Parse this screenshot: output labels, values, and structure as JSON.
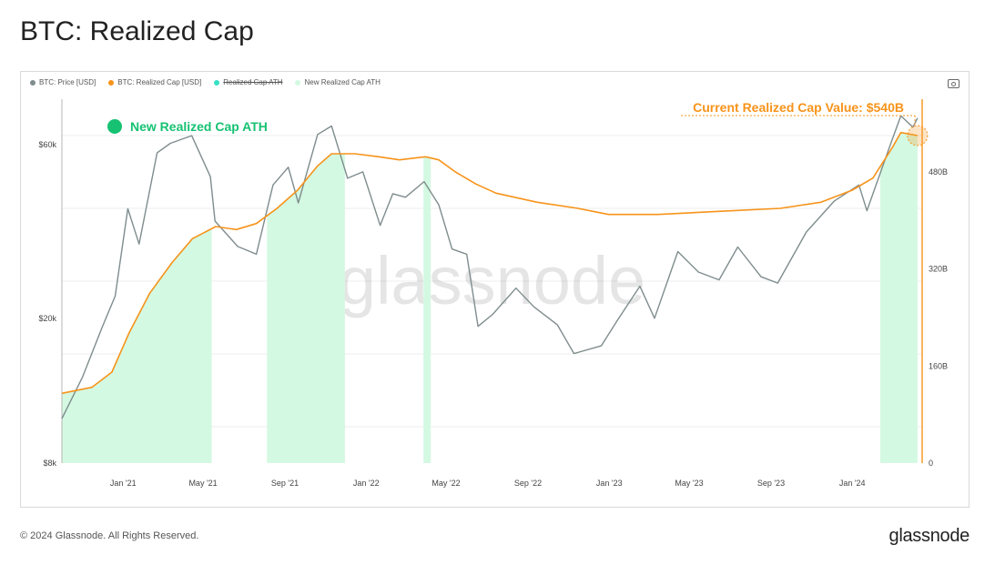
{
  "page": {
    "title": "BTC: Realized Cap",
    "copyright": "© 2024 Glassnode. All Rights Reserved.",
    "brand": "glassnode",
    "watermark": "glassnode"
  },
  "colors": {
    "price": "#7f8c8d",
    "realized_cap": "#f7931a",
    "ath_line": "#36e0c4",
    "ath_fill": "#d4f9e2",
    "ath_badge": "#16c172",
    "annotation": "#f7931a"
  },
  "chart_data": {
    "type": "line",
    "legend": [
      {
        "name": "BTC: Price [USD]",
        "color": "#7f8c8d",
        "struck": false
      },
      {
        "name": "BTC: Realized Cap [USD]",
        "color": "#f7931a",
        "struck": false
      },
      {
        "name": "Realized Cap ATH",
        "color": "#36e0c4",
        "struck": true
      },
      {
        "name": "New Realized Cap ATH",
        "color": "#d4f9e2",
        "struck": false
      }
    ],
    "x_ticks": [
      "Jan '21",
      "May '21",
      "Sep '21",
      "Jan '22",
      "May '22",
      "Sep '22",
      "Jan '23",
      "May '23",
      "Sep '23",
      "Jan '24"
    ],
    "x_range": [
      "2020-10-01",
      "2024-04-15"
    ],
    "y_left": {
      "scale": "log",
      "range": [
        8000,
        80000
      ],
      "ticks": [
        {
          "v": 8000,
          "label": "$8k"
        },
        {
          "v": 20000,
          "label": "$20k"
        },
        {
          "v": 60000,
          "label": "$60k"
        }
      ]
    },
    "y_right": {
      "scale": "linear",
      "range": [
        0,
        600
      ],
      "unit": "B",
      "ticks": [
        {
          "v": 0,
          "label": "0"
        },
        {
          "v": 160,
          "label": "160B"
        },
        {
          "v": 320,
          "label": "320B"
        },
        {
          "v": 480,
          "label": "480B"
        }
      ]
    },
    "price": {
      "name": "BTC: Price [USD]",
      "x": [
        "2020-10-01",
        "2020-11-01",
        "2020-12-01",
        "2020-12-20",
        "2021-01-08",
        "2021-01-25",
        "2021-02-21",
        "2021-03-13",
        "2021-04-14",
        "2021-05-12",
        "2021-05-19",
        "2021-06-22",
        "2021-07-20",
        "2021-08-14",
        "2021-09-06",
        "2021-09-21",
        "2021-10-20",
        "2021-11-10",
        "2021-12-04",
        "2021-12-27",
        "2022-01-22",
        "2022-02-10",
        "2022-03-01",
        "2022-03-29",
        "2022-04-20",
        "2022-05-10",
        "2022-06-01",
        "2022-06-18",
        "2022-07-10",
        "2022-08-14",
        "2022-09-10",
        "2022-10-15",
        "2022-11-09",
        "2022-12-20",
        "2023-01-13",
        "2023-02-16",
        "2023-03-10",
        "2023-04-14",
        "2023-05-15",
        "2023-06-15",
        "2023-07-13",
        "2023-08-17",
        "2023-09-11",
        "2023-10-24",
        "2023-12-05",
        "2024-01-11",
        "2024-01-23",
        "2024-02-28",
        "2024-03-14",
        "2024-04-01",
        "2024-04-08"
      ],
      "y": [
        10600,
        13800,
        19000,
        23000,
        40000,
        32000,
        57000,
        60500,
        63500,
        49000,
        37000,
        31500,
        30000,
        46500,
        52000,
        41500,
        64000,
        67500,
        48500,
        50500,
        36000,
        44000,
        43000,
        47500,
        41000,
        31000,
        30000,
        19000,
        20500,
        24200,
        21500,
        19200,
        16000,
        16800,
        19700,
        24500,
        20000,
        30500,
        26800,
        25500,
        31400,
        26000,
        25000,
        34500,
        42000,
        46500,
        39500,
        60500,
        72000,
        67000,
        71000
      ]
    },
    "realized_cap": {
      "name": "BTC: Realized Cap [USD]",
      "unit": "B",
      "x": [
        "2020-10-01",
        "2020-11-15",
        "2020-12-15",
        "2021-01-10",
        "2021-02-10",
        "2021-03-15",
        "2021-04-15",
        "2021-05-20",
        "2021-06-20",
        "2021-07-20",
        "2021-08-20",
        "2021-09-20",
        "2021-10-20",
        "2021-11-10",
        "2021-12-15",
        "2022-01-20",
        "2022-02-20",
        "2022-03-31",
        "2022-04-20",
        "2022-05-15",
        "2022-06-15",
        "2022-07-15",
        "2022-09-15",
        "2022-11-15",
        "2022-12-31",
        "2023-03-15",
        "2023-06-15",
        "2023-09-15",
        "2023-11-15",
        "2024-01-01",
        "2024-02-01",
        "2024-03-01",
        "2024-03-14",
        "2024-04-08"
      ],
      "y": [
        115,
        125,
        150,
        215,
        280,
        330,
        370,
        390,
        385,
        395,
        420,
        450,
        490,
        510,
        510,
        505,
        500,
        505,
        500,
        480,
        460,
        445,
        430,
        420,
        410,
        410,
        415,
        420,
        430,
        450,
        470,
        520,
        545,
        540
      ]
    },
    "ath_periods": [
      [
        "2020-10-01",
        "2021-05-14"
      ],
      [
        "2021-08-05",
        "2021-11-30"
      ],
      [
        "2022-03-28",
        "2022-04-08"
      ],
      [
        "2024-02-12",
        "2024-04-08"
      ]
    ],
    "annotations": [
      {
        "text": "Current Realized Cap Value: $540B",
        "x": "2024-04-08",
        "value": 540
      },
      {
        "text": "New Realized Cap ATH",
        "badge": true
      }
    ]
  }
}
